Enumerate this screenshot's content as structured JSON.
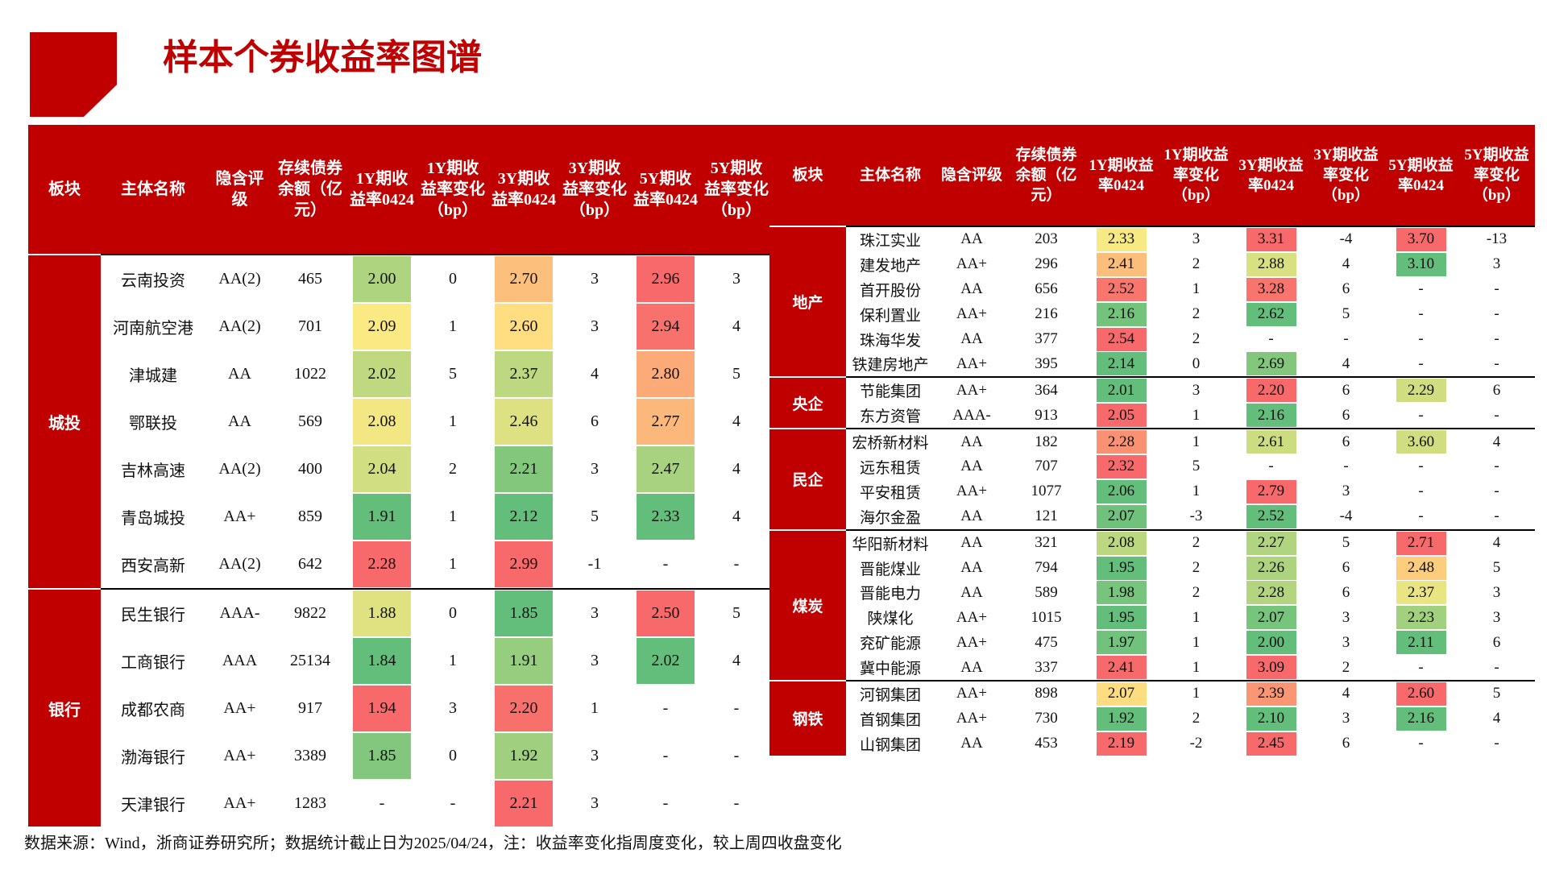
{
  "header": {
    "title": "样本个券收益率图谱"
  },
  "left_table": {
    "columns": [
      "板块",
      "主体名称",
      "隐含评级",
      "存续债券余额（亿元）",
      "1Y期收益率0424",
      "1Y期收益率变化（bp）",
      "3Y期收益率0424",
      "3Y期收益率变化（bp）",
      "5Y期收益率0424",
      "5Y期收益率变化（bp）"
    ],
    "sections": [
      {
        "name": "城投",
        "rows": [
          [
            "云南投资",
            "AA(2)",
            "465",
            "2.00",
            "0",
            "2.70",
            "3",
            "2.96",
            "3"
          ],
          [
            "河南航空港",
            "AA(2)",
            "701",
            "2.09",
            "1",
            "2.60",
            "3",
            "2.94",
            "4"
          ],
          [
            "津城建",
            "AA",
            "1022",
            "2.02",
            "5",
            "2.37",
            "4",
            "2.80",
            "5"
          ],
          [
            "鄂联投",
            "AA",
            "569",
            "2.08",
            "1",
            "2.46",
            "6",
            "2.77",
            "4"
          ],
          [
            "吉林高速",
            "AA(2)",
            "400",
            "2.04",
            "2",
            "2.21",
            "3",
            "2.47",
            "4"
          ],
          [
            "青岛城投",
            "AA+",
            "859",
            "1.91",
            "1",
            "2.12",
            "5",
            "2.33",
            "4"
          ],
          [
            "西安高新",
            "AA(2)",
            "642",
            "2.28",
            "1",
            "2.99",
            "-1",
            "-",
            "-"
          ]
        ]
      },
      {
        "name": "银行",
        "rows": [
          [
            "民生银行",
            "AAA-",
            "9822",
            "1.88",
            "0",
            "1.85",
            "3",
            "2.50",
            "5"
          ],
          [
            "工商银行",
            "AAA",
            "25134",
            "1.84",
            "1",
            "1.91",
            "3",
            "2.02",
            "4"
          ],
          [
            "成都农商",
            "AA+",
            "917",
            "1.94",
            "3",
            "2.20",
            "1",
            "-",
            "-"
          ],
          [
            "渤海银行",
            "AA+",
            "3389",
            "1.85",
            "0",
            "1.92",
            "3",
            "-",
            "-"
          ],
          [
            "天津银行",
            "AA+",
            "1283",
            "-",
            "-",
            "2.21",
            "3",
            "-",
            "-"
          ]
        ]
      }
    ]
  },
  "right_table": {
    "columns": [
      "板块",
      "主体名称",
      "隐含评级",
      "存续债券余额（亿元）",
      "1Y期收益率0424",
      "1Y期收益率变化（bp）",
      "3Y期收益率0424",
      "3Y期收益率变化（bp）",
      "5Y期收益率0424",
      "5Y期收益率变化（bp）"
    ],
    "sections": [
      {
        "name": "地产",
        "rows": [
          [
            "珠江实业",
            "AA",
            "203",
            "2.33",
            "3",
            "3.31",
            "-4",
            "3.70",
            "-13"
          ],
          [
            "建发地产",
            "AA+",
            "296",
            "2.41",
            "2",
            "2.88",
            "4",
            "3.10",
            "3"
          ],
          [
            "首开股份",
            "AA",
            "656",
            "2.52",
            "1",
            "3.28",
            "6",
            "-",
            "-"
          ],
          [
            "保利置业",
            "AA+",
            "216",
            "2.16",
            "2",
            "2.62",
            "5",
            "-",
            "-"
          ],
          [
            "珠海华发",
            "AA",
            "377",
            "2.54",
            "2",
            "-",
            "-",
            "-",
            "-"
          ],
          [
            "铁建房地产",
            "AA+",
            "395",
            "2.14",
            "0",
            "2.69",
            "4",
            "-",
            "-"
          ]
        ]
      },
      {
        "name": "央企",
        "rows": [
          [
            "节能集团",
            "AA+",
            "364",
            "2.01",
            "3",
            "2.20",
            "6",
            "2.29",
            "6"
          ],
          [
            "东方资管",
            "AAA-",
            "913",
            "2.05",
            "1",
            "2.16",
            "6",
            "-",
            "-"
          ]
        ]
      },
      {
        "name": "民企",
        "rows": [
          [
            "宏桥新材料",
            "AA",
            "182",
            "2.28",
            "1",
            "2.61",
            "6",
            "3.60",
            "4"
          ],
          [
            "远东租赁",
            "AA",
            "707",
            "2.32",
            "5",
            "-",
            "-",
            "-",
            "-"
          ],
          [
            "平安租赁",
            "AA+",
            "1077",
            "2.06",
            "1",
            "2.79",
            "3",
            "-",
            "-"
          ],
          [
            "海尔金盈",
            "AA",
            "121",
            "2.07",
            "-3",
            "2.52",
            "-4",
            "-",
            "-"
          ]
        ]
      },
      {
        "name": "煤炭",
        "rows": [
          [
            "华阳新材料",
            "AA",
            "321",
            "2.08",
            "2",
            "2.27",
            "5",
            "2.71",
            "4"
          ],
          [
            "晋能煤业",
            "AA",
            "794",
            "1.95",
            "2",
            "2.26",
            "6",
            "2.48",
            "5"
          ],
          [
            "晋能电力",
            "AA",
            "589",
            "1.98",
            "2",
            "2.28",
            "6",
            "2.37",
            "3"
          ],
          [
            "陕煤化",
            "AA+",
            "1015",
            "1.95",
            "1",
            "2.07",
            "3",
            "2.23",
            "3"
          ],
          [
            "兖矿能源",
            "AA+",
            "475",
            "1.97",
            "1",
            "2.00",
            "3",
            "2.11",
            "6"
          ],
          [
            "冀中能源",
            "AA",
            "337",
            "2.41",
            "1",
            "3.09",
            "2",
            "-",
            "-"
          ]
        ]
      },
      {
        "name": "钢铁",
        "rows": [
          [
            "河钢集团",
            "AA+",
            "898",
            "2.07",
            "1",
            "2.39",
            "4",
            "2.60",
            "5"
          ],
          [
            "首钢集团",
            "AA+",
            "730",
            "1.92",
            "2",
            "2.10",
            "3",
            "2.16",
            "4"
          ],
          [
            "山钢集团",
            "AA",
            "453",
            "2.19",
            "-2",
            "2.45",
            "6",
            "-",
            "-"
          ]
        ]
      }
    ]
  },
  "footer": {
    "source": "数据来源：Wind，浙商证券研究所；数据统计截止日为2025/04/24，注：收益率变化指周度变化，较上周四收盘变化"
  }
}
